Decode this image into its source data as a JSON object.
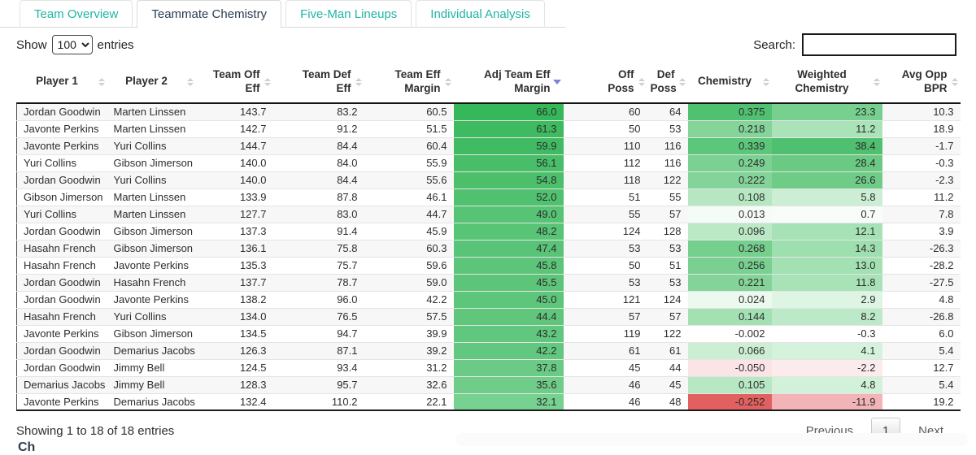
{
  "tabs": [
    {
      "label": "Team Overview",
      "active": false
    },
    {
      "label": "Teammate Chemistry",
      "active": true
    },
    {
      "label": "Five-Man Lineups",
      "active": false
    },
    {
      "label": "Individual Analysis",
      "active": false
    }
  ],
  "controls": {
    "show_label": "Show",
    "entries_value": "100",
    "entries_suffix": "entries",
    "search_label": "Search:",
    "search_value": ""
  },
  "table": {
    "columns": [
      {
        "id": "p1",
        "label": "Player 1",
        "align": "left",
        "width": 111,
        "sort": "none"
      },
      {
        "id": "p2",
        "label": "Player 2",
        "align": "left",
        "width": 109,
        "sort": "none"
      },
      {
        "id": "off_eff",
        "label": "Team Off\nEff",
        "align": "right",
        "width": 95,
        "sort": "none"
      },
      {
        "id": "def_eff",
        "label": "Team Def\nEff",
        "align": "right",
        "width": 112,
        "sort": "none"
      },
      {
        "id": "margin",
        "label": "Team Eff\nMargin",
        "align": "right",
        "width": 110,
        "sort": "none"
      },
      {
        "id": "adj",
        "label": "Adj Team Eff\nMargin",
        "align": "right",
        "width": 135,
        "sort": "desc"
      },
      {
        "id": "off_poss",
        "label": "Off\nPoss",
        "align": "right",
        "width": 103,
        "sort": "none",
        "pad": "pad-poss"
      },
      {
        "id": "def_poss",
        "label": "Def\nPoss",
        "align": "right",
        "width": 50,
        "sort": "none",
        "pad": "pad-poss"
      },
      {
        "id": "chem",
        "label": "Chemistry",
        "align": "center",
        "width": 103,
        "sort": "none",
        "pad": "pad-chem"
      },
      {
        "id": "wchem",
        "label": "Weighted\nChemistry",
        "align": "center",
        "width": 136,
        "sort": "none",
        "pad": "pad-wchem"
      },
      {
        "id": "bpr",
        "label": "Avg Opp\nBPR",
        "align": "right",
        "width": 96,
        "sort": "none"
      }
    ],
    "rows": [
      {
        "p1": "Jordan Goodwin",
        "p2": "Marten Linssen",
        "off_eff": "143.7",
        "def_eff": "83.2",
        "margin": "60.5",
        "adj": "66.0",
        "adj_bg": "#35b75a",
        "off_poss": "60",
        "def_poss": "64",
        "chem": "0.375",
        "chem_bg": "#50c170",
        "wchem": "23.3",
        "wchem_bg": "#78d08f",
        "bpr": "10.3"
      },
      {
        "p1": "Javonte Perkins",
        "p2": "Marten Linssen",
        "off_eff": "142.7",
        "def_eff": "91.2",
        "margin": "51.5",
        "adj": "61.3",
        "adj_bg": "#3eba60",
        "off_poss": "50",
        "def_poss": "53",
        "chem": "0.218",
        "chem_bg": "#85d49a",
        "wchem": "11.2",
        "wchem_bg": "#aae3b8",
        "bpr": "18.9"
      },
      {
        "p1": "Javonte Perkins",
        "p2": "Yuri Collins",
        "off_eff": "144.7",
        "def_eff": "84.4",
        "margin": "60.4",
        "adj": "59.9",
        "adj_bg": "#41bb63",
        "off_poss": "110",
        "def_poss": "116",
        "chem": "0.339",
        "chem_bg": "#5cc67a",
        "wchem": "38.4",
        "wchem_bg": "#4fc06f",
        "bpr": "-1.7"
      },
      {
        "p1": "Yuri Collins",
        "p2": "Gibson Jimerson",
        "off_eff": "140.0",
        "def_eff": "84.0",
        "margin": "55.9",
        "adj": "56.1",
        "adj_bg": "#48be68",
        "off_poss": "112",
        "def_poss": "116",
        "chem": "0.249",
        "chem_bg": "#7bd192",
        "wchem": "28.4",
        "wchem_bg": "#6aca83",
        "bpr": "-0.3"
      },
      {
        "p1": "Jordan Goodwin",
        "p2": "Yuri Collins",
        "off_eff": "140.0",
        "def_eff": "84.4",
        "margin": "55.6",
        "adj": "54.8",
        "adj_bg": "#4bbf6a",
        "off_poss": "118",
        "def_poss": "122",
        "chem": "0.222",
        "chem_bg": "#84d499",
        "wchem": "26.6",
        "wchem_bg": "#6fcc87",
        "bpr": "-2.3"
      },
      {
        "p1": "Gibson Jimerson",
        "p2": "Marten Linssen",
        "off_eff": "133.9",
        "def_eff": "87.8",
        "margin": "46.1",
        "adj": "52.0",
        "adj_bg": "#50c16e",
        "off_poss": "51",
        "def_poss": "55",
        "chem": "0.108",
        "chem_bg": "#b6e7c2",
        "wchem": "5.8",
        "wchem_bg": "#cbeed4",
        "bpr": "11.2"
      },
      {
        "p1": "Yuri Collins",
        "p2": "Marten Linssen",
        "off_eff": "127.7",
        "def_eff": "83.0",
        "margin": "44.7",
        "adj": "49.0",
        "adj_bg": "#56c375",
        "off_poss": "55",
        "def_poss": "57",
        "chem": "0.013",
        "chem_bg": "#f5fcf7",
        "wchem": "0.7",
        "wchem_bg": "#f8fdf9",
        "bpr": "7.8"
      },
      {
        "p1": "Jordan Goodwin",
        "p2": "Gibson Jimerson",
        "off_eff": "137.3",
        "def_eff": "91.4",
        "margin": "45.9",
        "adj": "48.2",
        "adj_bg": "#57c476",
        "off_poss": "124",
        "def_poss": "128",
        "chem": "0.096",
        "chem_bg": "#bbe9c6",
        "wchem": "12.1",
        "wchem_bg": "#a6e2b5",
        "bpr": "3.9"
      },
      {
        "p1": "Hasahn French",
        "p2": "Gibson Jimerson",
        "off_eff": "136.1",
        "def_eff": "75.8",
        "margin": "60.3",
        "adj": "47.4",
        "adj_bg": "#59c477",
        "off_poss": "53",
        "def_poss": "53",
        "chem": "0.268",
        "chem_bg": "#75cf8d",
        "wchem": "14.3",
        "wchem_bg": "#9edfaf",
        "bpr": "-26.3"
      },
      {
        "p1": "Hasahn French",
        "p2": "Javonte Perkins",
        "off_eff": "135.3",
        "def_eff": "75.7",
        "margin": "59.6",
        "adj": "45.8",
        "adj_bg": "#5cc57a",
        "off_poss": "50",
        "def_poss": "51",
        "chem": "0.256",
        "chem_bg": "#79d090",
        "wchem": "13.0",
        "wchem_bg": "#a3e1b3",
        "bpr": "-28.2"
      },
      {
        "p1": "Jordan Goodwin",
        "p2": "Hasahn French",
        "off_eff": "137.7",
        "def_eff": "78.7",
        "margin": "59.0",
        "adj": "45.5",
        "adj_bg": "#5dc57a",
        "off_poss": "53",
        "def_poss": "53",
        "chem": "0.221",
        "chem_bg": "#84d499",
        "wchem": "11.8",
        "wchem_bg": "#a8e2b7",
        "bpr": "-27.5"
      },
      {
        "p1": "Jordan Goodwin",
        "p2": "Javonte Perkins",
        "off_eff": "138.2",
        "def_eff": "96.0",
        "margin": "42.2",
        "adj": "45.0",
        "adj_bg": "#5ec67b",
        "off_poss": "121",
        "def_poss": "124",
        "chem": "0.024",
        "chem_bg": "#ecf9ef",
        "wchem": "2.9",
        "wchem_bg": "#dff5e4",
        "bpr": "4.8"
      },
      {
        "p1": "Hasahn French",
        "p2": "Yuri Collins",
        "off_eff": "134.0",
        "def_eff": "76.5",
        "margin": "57.5",
        "adj": "44.4",
        "adj_bg": "#5fc67c",
        "off_poss": "57",
        "def_poss": "57",
        "chem": "0.144",
        "chem_bg": "#a3e0b2",
        "wchem": "8.2",
        "wchem_bg": "#bce9c7",
        "bpr": "-26.8"
      },
      {
        "p1": "Javonte Perkins",
        "p2": "Gibson Jimerson",
        "off_eff": "134.5",
        "def_eff": "94.7",
        "margin": "39.9",
        "adj": "43.2",
        "adj_bg": "#61c77e",
        "off_poss": "119",
        "def_poss": "122",
        "chem": "-0.002",
        "chem_bg": "#ffffff",
        "wchem": "-0.3",
        "wchem_bg": "#ffffff",
        "bpr": "6.0"
      },
      {
        "p1": "Jordan Goodwin",
        "p2": "Demarius Jacobs",
        "off_eff": "126.3",
        "def_eff": "87.1",
        "margin": "39.2",
        "adj": "42.2",
        "adj_bg": "#63c87f",
        "off_poss": "61",
        "def_poss": "61",
        "chem": "0.066",
        "chem_bg": "#ccefd4",
        "wchem": "4.1",
        "wchem_bg": "#d5f2dc",
        "bpr": "5.4"
      },
      {
        "p1": "Jordan Goodwin",
        "p2": "Jimmy Bell",
        "off_eff": "124.5",
        "def_eff": "93.4",
        "margin": "31.2",
        "adj": "37.8",
        "adj_bg": "#6bca86",
        "off_poss": "45",
        "def_poss": "44",
        "chem": "-0.050",
        "chem_bg": "#fbe4e5",
        "wchem": "-2.2",
        "wchem_bg": "#fcebec",
        "bpr": "12.7"
      },
      {
        "p1": "Demarius Jacobs",
        "p2": "Jimmy Bell",
        "off_eff": "128.3",
        "def_eff": "95.7",
        "margin": "32.6",
        "adj": "35.6",
        "adj_bg": "#6fcc89",
        "off_poss": "46",
        "def_poss": "45",
        "chem": "0.105",
        "chem_bg": "#b7e7c3",
        "wchem": "4.8",
        "wchem_bg": "#d1f1d9",
        "bpr": "5.4"
      },
      {
        "p1": "Javonte Perkins",
        "p2": "Demarius Jacobs",
        "off_eff": "132.4",
        "def_eff": "110.2",
        "margin": "22.1",
        "adj": "32.1",
        "adj_bg": "#77d190",
        "off_poss": "46",
        "def_poss": "48",
        "chem": "-0.252",
        "chem_bg": "#e26060",
        "wchem": "-11.9",
        "wchem_bg": "#f3b4b8",
        "bpr": "19.2"
      }
    ]
  },
  "footer": {
    "summary": "Showing 1 to 18 of 18 entries",
    "previous_label": "Previous",
    "current_page": "1",
    "next_label": "Next"
  },
  "partial_heading": "Ch",
  "colors": {
    "tab_link": "#1fb6a1",
    "tab_active_text": "#2c3e50",
    "sort_active_arrow": "#8181d8",
    "positive_green_max": "#35b75a",
    "negative_red_max": "#e26060"
  }
}
